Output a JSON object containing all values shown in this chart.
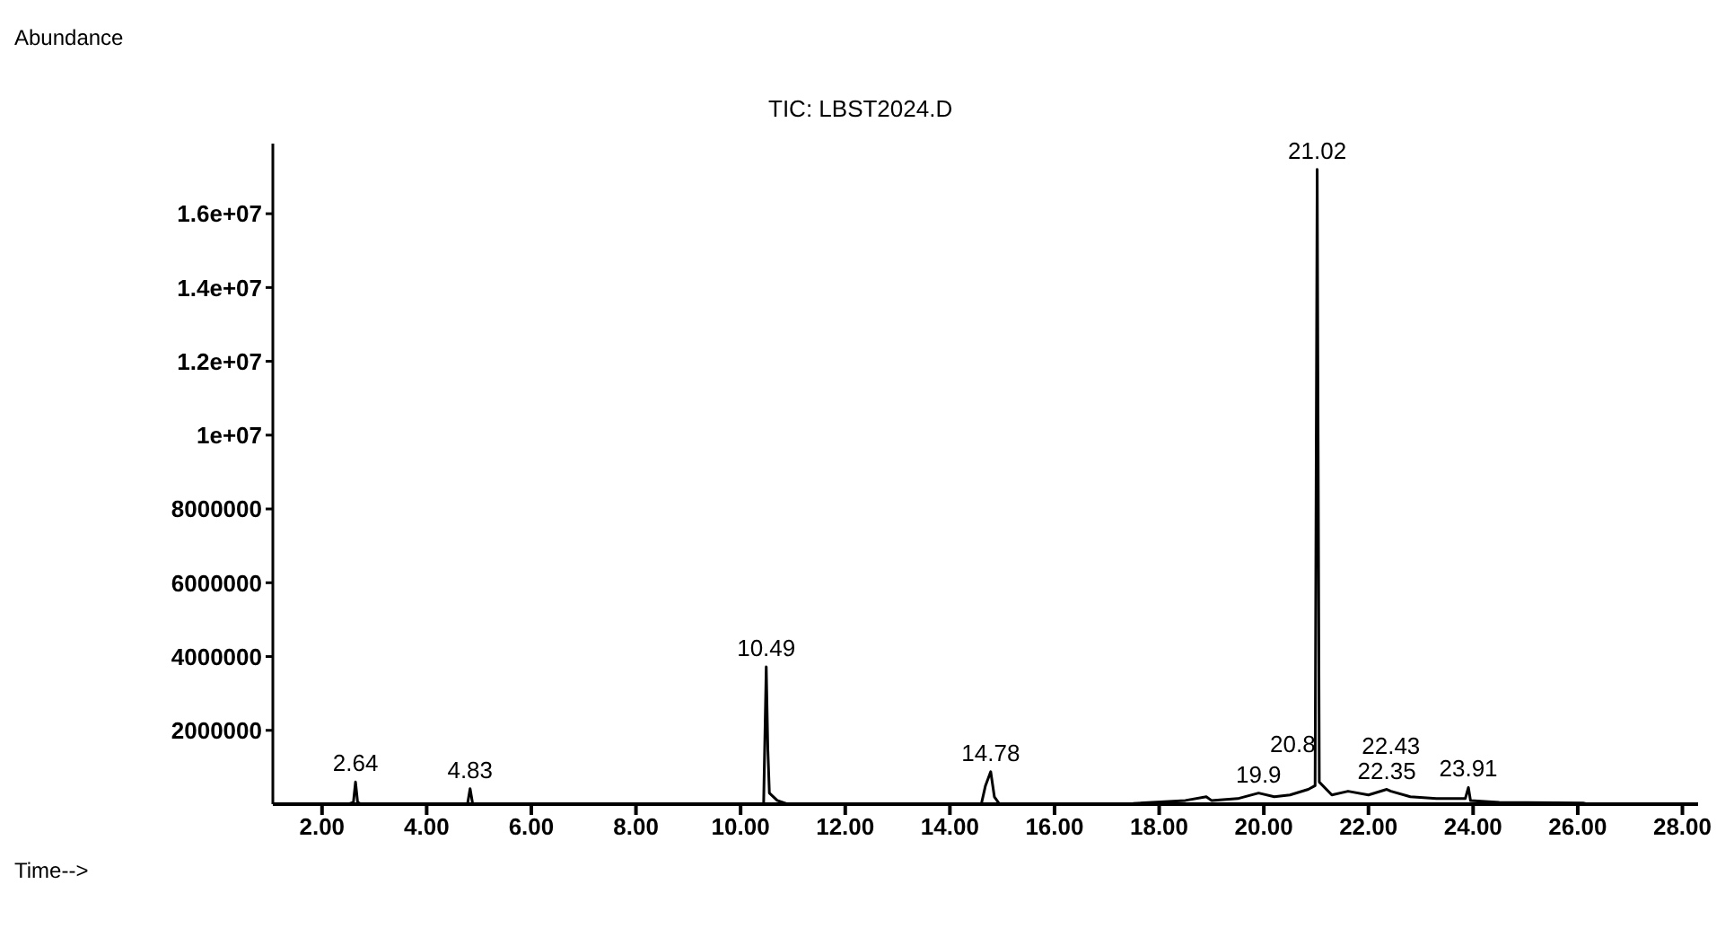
{
  "chart_data": {
    "type": "line",
    "title": "TIC: LBST2024.D",
    "ylabel": "Abundance",
    "xlabel": "Time-->",
    "x": [
      1.06,
      2.5,
      2.6,
      2.64,
      2.68,
      2.75,
      4.78,
      4.83,
      4.88,
      10.44,
      10.49,
      10.52,
      10.55,
      10.7,
      10.9,
      14.6,
      14.68,
      14.78,
      14.85,
      14.95,
      17.5,
      18.5,
      18.9,
      19.0,
      19.5,
      19.9,
      20.2,
      20.5,
      20.85,
      20.98,
      21.02,
      21.06,
      21.3,
      21.61,
      22.0,
      22.35,
      22.43,
      22.8,
      23.3,
      23.85,
      23.91,
      23.95,
      24.5,
      26.1,
      26.2,
      28.3
    ],
    "series": [
      {
        "color": "#000000",
        "values": [
          0,
          0,
          50000,
          600000,
          50000,
          0,
          0,
          420000,
          0,
          0,
          3720000,
          1500000,
          300000,
          100000,
          0,
          0,
          500000,
          880000,
          200000,
          0,
          20000,
          100000,
          200000,
          100000,
          150000,
          300000,
          200000,
          250000,
          400000,
          500000,
          17200000,
          600000,
          250000,
          350000,
          250000,
          400000,
          350000,
          200000,
          150000,
          150000,
          450000,
          100000,
          50000,
          30000,
          0,
          0
        ]
      }
    ],
    "xlim": [
      1.06,
      28.3
    ],
    "xticks": [
      {
        "value": 2,
        "label": "2.00"
      },
      {
        "value": 4,
        "label": "4.00"
      },
      {
        "value": 6,
        "label": "6.00"
      },
      {
        "value": 8,
        "label": "8.00"
      },
      {
        "value": 10,
        "label": "10.00"
      },
      {
        "value": 12,
        "label": "12.00"
      },
      {
        "value": 14,
        "label": "14.00"
      },
      {
        "value": 16,
        "label": "16.00"
      },
      {
        "value": 18,
        "label": "18.00"
      },
      {
        "value": 20,
        "label": "20.00"
      },
      {
        "value": 22,
        "label": "22.00"
      },
      {
        "value": 24,
        "label": "24.00"
      },
      {
        "value": 26,
        "label": "26.00"
      },
      {
        "value": 28,
        "label": "28.00"
      }
    ],
    "ylim": [
      0,
      17900000
    ],
    "yticks": [
      2000000,
      4000000,
      6000000,
      8000000,
      {
        "value": 10000000,
        "label": "1e+07"
      },
      {
        "value": 12000000,
        "label": "1.2e+07"
      },
      {
        "value": 14000000,
        "label": "1.4e+07"
      },
      {
        "value": 16000000,
        "label": "1.6e+07"
      }
    ],
    "annotations": [
      {
        "text": "2.64",
        "x": 2.64,
        "y": 600000
      },
      {
        "text": "4.83",
        "x": 4.83,
        "y": 420000
      },
      {
        "text": "10.49",
        "x": 10.49,
        "y": 3720000
      },
      {
        "text": "14.78",
        "x": 14.78,
        "y": 880000
      },
      {
        "text": "21.02",
        "x": 21.02,
        "y": 17200000
      },
      {
        "text": "19.9",
        "x": 19.9,
        "y": 300000
      },
      {
        "text": "20.8",
        "x": 20.85,
        "y": 400000
      },
      {
        "text": "22.35",
        "x": 22.35,
        "y": 400000
      },
      {
        "text": "22.43",
        "x": 22.43,
        "y": 350000
      },
      {
        "text": "23.91",
        "x": 23.91,
        "y": 450000
      }
    ],
    "grid": false,
    "legend": false,
    "marker": "none",
    "line_style": "solid"
  }
}
